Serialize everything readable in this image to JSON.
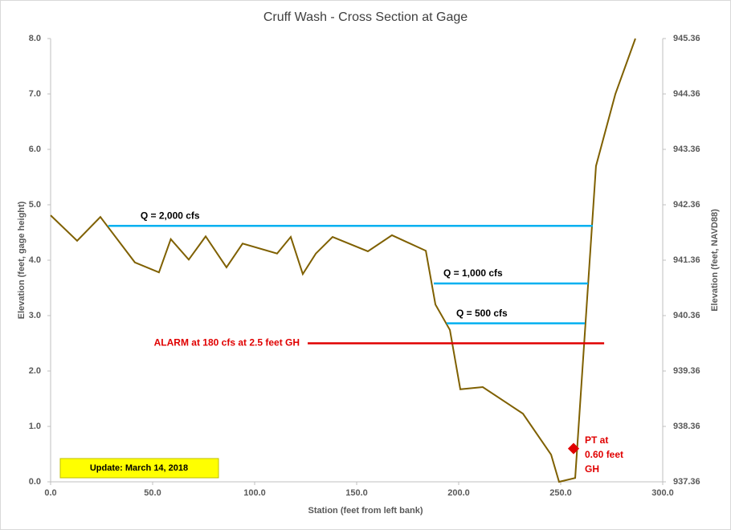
{
  "chart_data": {
    "type": "line",
    "title": "Cruff Wash - Cross Section at Gage",
    "x_label": "Station (feet from left bank)",
    "y_label": "Elevation (feet, gage height)",
    "y2_label": "Elevation (feet, NAVD88)",
    "xlim": [
      0,
      300
    ],
    "xticks": [
      {
        "value": 0,
        "label": "0.0"
      },
      {
        "value": 50,
        "label": "50.0"
      },
      {
        "value": 100,
        "label": "100.0"
      },
      {
        "value": 150,
        "label": "150.0"
      },
      {
        "value": 200,
        "label": "200.0"
      },
      {
        "value": 250,
        "label": "250.0"
      },
      {
        "value": 300,
        "label": "300.0"
      }
    ],
    "ylim": [
      0,
      8
    ],
    "yticks": [
      {
        "value": 0,
        "label": "0.0"
      },
      {
        "value": 1,
        "label": "1.0"
      },
      {
        "value": 2,
        "label": "2.0"
      },
      {
        "value": 3,
        "label": "3.0"
      },
      {
        "value": 4,
        "label": "4.0"
      },
      {
        "value": 5,
        "label": "5.0"
      },
      {
        "value": 6,
        "label": "6.0"
      },
      {
        "value": 7,
        "label": "7.0"
      },
      {
        "value": 8,
        "label": "8.0"
      }
    ],
    "y2lim": [
      937.36,
      945.36
    ],
    "y2ticks": [
      937.36,
      938.36,
      939.36,
      940.36,
      941.36,
      942.36,
      943.36,
      944.36,
      945.36
    ],
    "series": [
      {
        "color": "#7f6000",
        "x": [
          0,
          13,
          24.4,
          41.3,
          53.1,
          58.9,
          67.7,
          76,
          86.2,
          94.1,
          111,
          117.7,
          123.6,
          130,
          138.2,
          155.5,
          167.3,
          183.9,
          188.6,
          195.7,
          200.8,
          211.8,
          231.5,
          245.3,
          249.2,
          257.1,
          267.3,
          276.8,
          286.6
        ],
        "values": [
          4.81,
          4.35,
          4.78,
          3.96,
          3.78,
          4.38,
          4.01,
          4.43,
          3.87,
          4.3,
          4.12,
          4.42,
          3.75,
          4.12,
          4.42,
          4.16,
          4.45,
          4.17,
          3.2,
          2.74,
          1.67,
          1.71,
          1.23,
          0.49,
          0,
          0.07,
          5.7,
          7,
          8
        ]
      }
    ],
    "levels": [
      {
        "label": "Q = 2,000 cfs",
        "value": 4.62,
        "x": [
          28.3,
          265.7
        ],
        "color": "#00b0f0"
      },
      {
        "label": "Q = 1,000 cfs",
        "value": 3.58,
        "x": [
          187.8,
          263.4
        ],
        "color": "#00b0f0"
      },
      {
        "label": "Q = 500 cfs",
        "value": 2.86,
        "x": [
          194.1,
          261.8
        ],
        "color": "#00b0f0"
      }
    ],
    "alarm": {
      "label": "ALARM at 180 cfs at 2.5 feet GH",
      "value": 2.5,
      "x": [
        126,
        271.3
      ],
      "color": "#e00000"
    },
    "marker": {
      "label": [
        "PT at",
        "0.60 feet",
        "GH"
      ],
      "x": 256.3,
      "value": 0.6,
      "color": "#e00000"
    },
    "note": "Update: March 14, 2018"
  }
}
